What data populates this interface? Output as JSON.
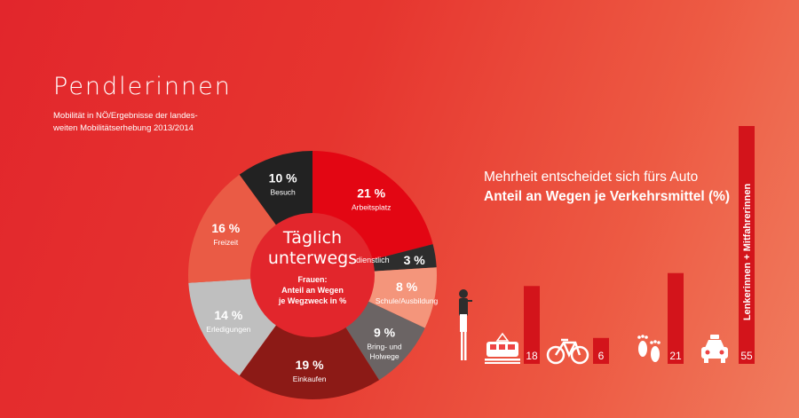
{
  "title": "Pendlerinnen",
  "subtitle_line1": "Mobilität in NÖ/Ergebnisse der landes-",
  "subtitle_line2": "weiten Mobilitätserhebung 2013/2014",
  "donut_center": {
    "title_line1": "Täglich",
    "title_line2": "unterwegs",
    "sub_line1": "Frauen:",
    "sub_line2": "Anteil an Wegen",
    "sub_line3": "je Wegzweck in %"
  },
  "right_title_line1": "Mehrheit entscheidet sich fürs Auto",
  "right_title_line2": "Anteil an Wegen je Verkehrsmittel (%)",
  "colors": {
    "arbeitsplatz": "#e30613",
    "dienstlich": "#2d2d2d",
    "schule": "#f4957b",
    "bring": "#6b6464",
    "einkaufen": "#8c1a16",
    "erledigungen": "#bfbfbf",
    "freizeit": "#ea5b45",
    "besuch": "#222222",
    "bar": "#d3141b"
  },
  "chart_data": [
    {
      "type": "pie",
      "slices": [
        {
          "pct_label": "21 %",
          "label": "Arbeitsplatz",
          "value": 21
        },
        {
          "pct_label": "3 %",
          "label": "dienstlich",
          "value": 3
        },
        {
          "pct_label": "8 %",
          "label": "Schule/Ausbildung",
          "value": 8
        },
        {
          "pct_label": "9 %",
          "label_line1": "Bring- und",
          "label_line2": "Holwege",
          "value": 9
        },
        {
          "pct_label": "19 %",
          "label": "Einkaufen",
          "value": 19
        },
        {
          "pct_label": "14 %",
          "label": "Erledigungen",
          "value": 14
        },
        {
          "pct_label": "16 %",
          "label": "Freizeit",
          "value": 16
        },
        {
          "pct_label": "10 %",
          "label": "Besuch",
          "value": 10
        }
      ]
    },
    {
      "type": "bar",
      "categories": [
        "Bahn",
        "Fahrrad",
        "zu Fuß",
        "Auto"
      ],
      "icons": [
        "train-icon",
        "bicycle-icon",
        "footprints-icon",
        "car-icon"
      ],
      "values": [
        18,
        6,
        21,
        55
      ],
      "value_labels": [
        "18",
        "6",
        "21",
        "55"
      ],
      "bar_annotation": "Lenkerinnen + Mitfahrerinnen",
      "ylim": [
        0,
        55
      ]
    }
  ]
}
